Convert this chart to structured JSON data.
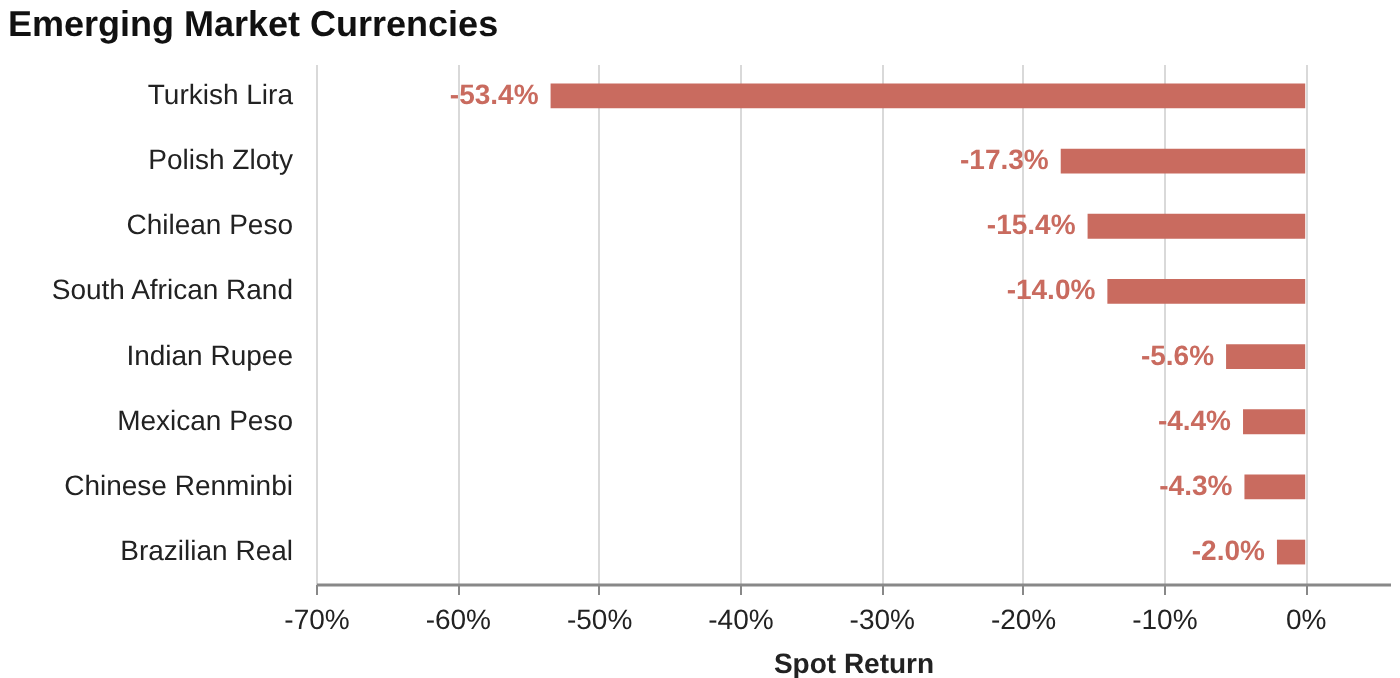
{
  "chart_data": {
    "type": "bar",
    "orientation": "horizontal",
    "title": "Emerging Market Currencies",
    "xlabel": "Spot Return",
    "categories": [
      "Turkish Lira",
      "Polish Zloty",
      "Chilean Peso",
      "South African Rand",
      "Indian Rupee",
      "Mexican Peso",
      "Chinese Renminbi",
      "Brazilian Real"
    ],
    "values": [
      -53.4,
      -17.3,
      -15.4,
      -14.0,
      -5.6,
      -4.4,
      -4.3,
      -2.0
    ],
    "value_labels": [
      "-53.4%",
      "-17.3%",
      "-15.4%",
      "-14.0%",
      "-5.6%",
      "-4.4%",
      "-4.3%",
      "-2.0%"
    ],
    "color": "#c96b5f",
    "xlim": [
      -70,
      6
    ],
    "xticks": [
      {
        "value": -70,
        "label": "-70%"
      },
      {
        "value": -60,
        "label": "-60%"
      },
      {
        "value": -50,
        "label": "-50%"
      },
      {
        "value": -40,
        "label": "-40%"
      },
      {
        "value": -30,
        "label": "-30%"
      },
      {
        "value": -20,
        "label": "-20%"
      },
      {
        "value": -10,
        "label": "-10%"
      },
      {
        "value": 0,
        "label": "0%"
      }
    ],
    "grid": "x"
  }
}
